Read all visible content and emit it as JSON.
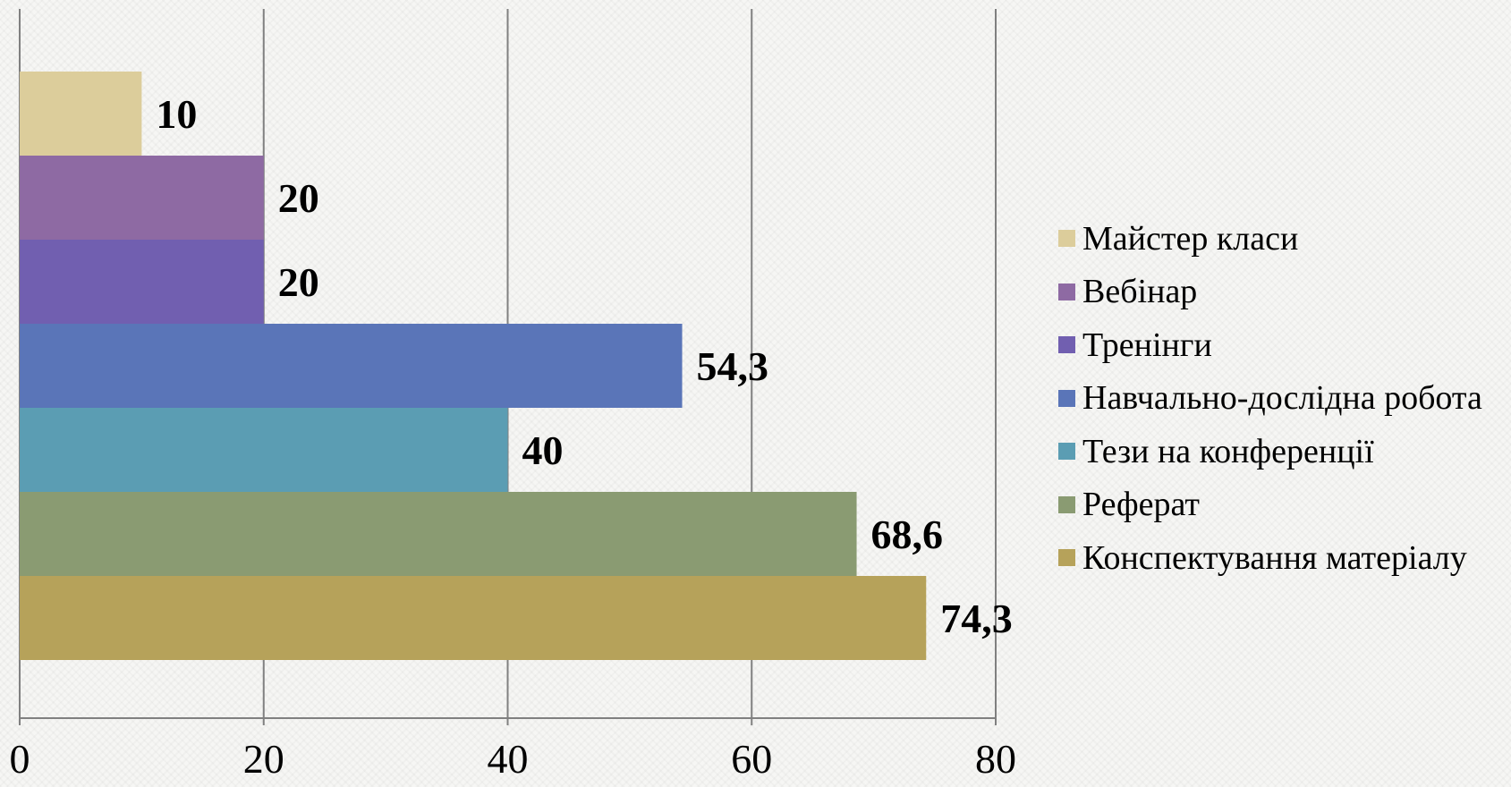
{
  "chart_data": {
    "type": "bar",
    "orientation": "horizontal",
    "categories": [
      "Майстер класи",
      "Вебінар",
      "Тренінги",
      "Навчально-дослідна робота",
      "Тези на конференції",
      "Реферат",
      "Конспектування матеріалу"
    ],
    "values": [
      10,
      20,
      20,
      54.3,
      40,
      68.6,
      74.3
    ],
    "value_labels": [
      "10",
      "20",
      "20",
      "54,3",
      "40",
      "68,6",
      "74,3"
    ],
    "colors": [
      "#dccd9b",
      "#8e6aa3",
      "#715fb0",
      "#5a75b8",
      "#5b9db3",
      "#8a9b72",
      "#b6a25a"
    ],
    "xlim": [
      0,
      80
    ],
    "xticks": [
      "0",
      "20",
      "40",
      "60",
      "80"
    ],
    "title": "",
    "xlabel": "",
    "ylabel": "",
    "grid": true,
    "legend_position": "right"
  }
}
